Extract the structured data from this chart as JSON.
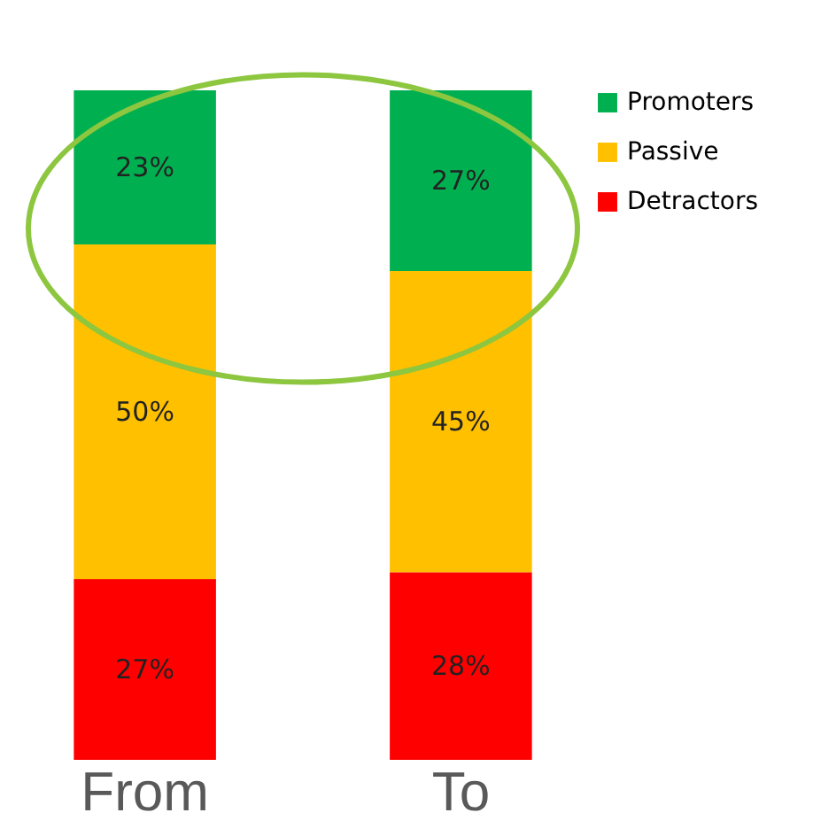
{
  "chart_data": {
    "type": "bar",
    "stacked": true,
    "categories": [
      "From",
      "To"
    ],
    "series": [
      {
        "name": "Detractors",
        "color": "#ff0000",
        "values": [
          27,
          28
        ],
        "value_labels": [
          "27%",
          "28%"
        ]
      },
      {
        "name": "Passive",
        "color": "#ffc000",
        "values": [
          50,
          45
        ],
        "value_labels": [
          "50%",
          "45%"
        ]
      },
      {
        "name": "Promoters",
        "color": "#00b050",
        "values": [
          23,
          27
        ],
        "value_labels": [
          "23%",
          "27%"
        ]
      }
    ],
    "legend": "right"
  }
}
